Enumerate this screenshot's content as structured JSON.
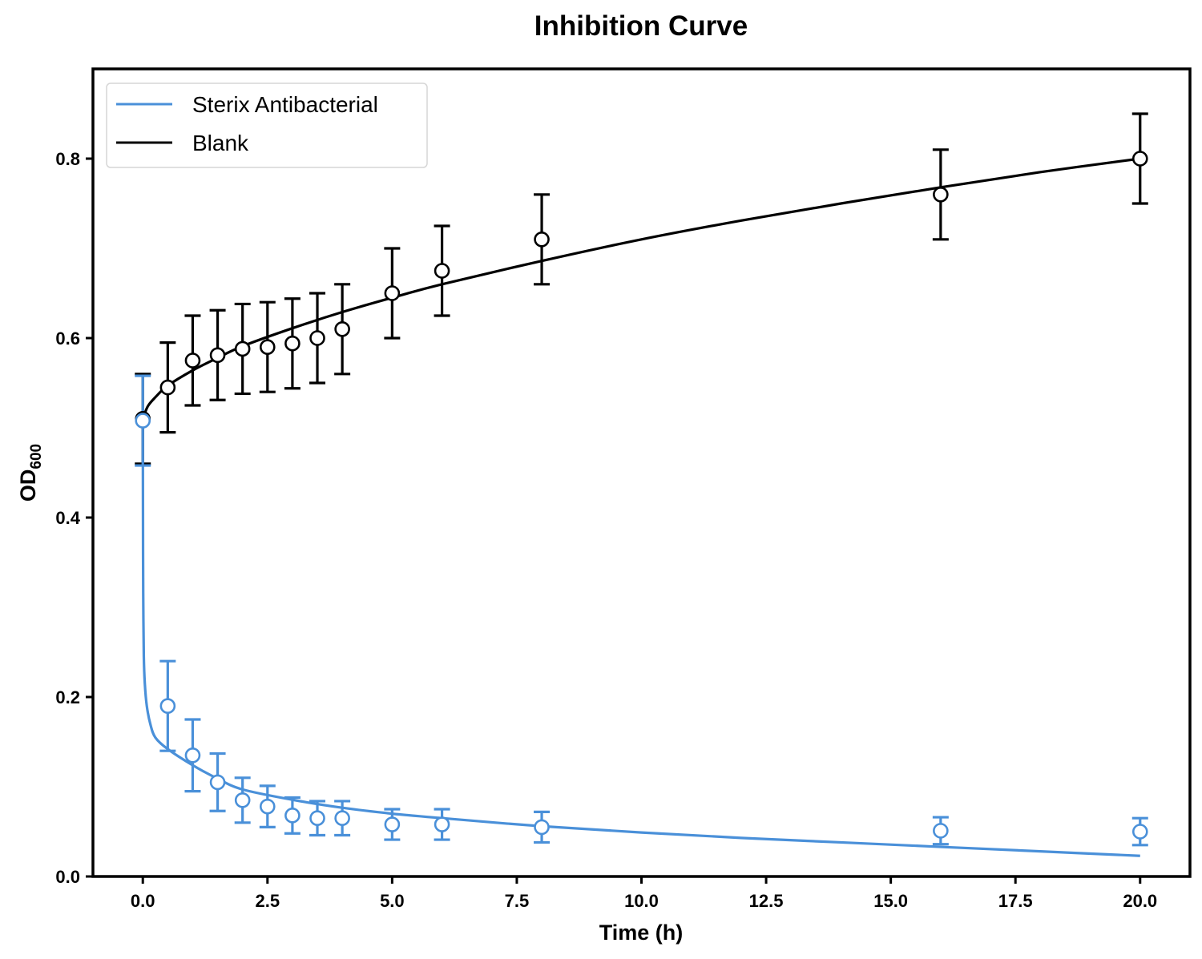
{
  "chart_data": {
    "type": "line",
    "title": "Inhibition Curve",
    "xlabel": "Time (h)",
    "ylabel_main": "OD",
    "ylabel_sub": "600",
    "xlim": [
      -1.0,
      21.0
    ],
    "ylim": [
      0.0,
      0.9
    ],
    "xticks": [
      0.0,
      2.5,
      5.0,
      7.5,
      10.0,
      12.5,
      15.0,
      17.5,
      20.0
    ],
    "xtick_labels": [
      "0.0",
      "2.5",
      "5.0",
      "7.5",
      "10.0",
      "12.5",
      "15.0",
      "17.5",
      "20.0"
    ],
    "yticks": [
      0.0,
      0.2,
      0.4,
      0.6,
      0.8
    ],
    "ytick_labels": [
      "0.0",
      "0.2",
      "0.4",
      "0.6",
      "0.8"
    ],
    "grid": false,
    "legend_position": "top-left",
    "series": [
      {
        "name": "Sterix Antibacterial",
        "color": "#4a90d9",
        "x": [
          0,
          0.5,
          1,
          1.5,
          2,
          2.5,
          3,
          3.5,
          4,
          5,
          6,
          8,
          16,
          20
        ],
        "y": [
          0.508,
          0.19,
          0.135,
          0.105,
          0.085,
          0.078,
          0.068,
          0.065,
          0.065,
          0.058,
          0.058,
          0.055,
          0.051,
          0.05
        ],
        "yerr": [
          0.05,
          0.05,
          0.04,
          0.032,
          0.025,
          0.023,
          0.02,
          0.019,
          0.019,
          0.017,
          0.017,
          0.017,
          0.015,
          0.015
        ],
        "fit": {
          "x": [
            0,
            0.005,
            0.01,
            0.02,
            0.04,
            0.08,
            0.15,
            0.25,
            0.5,
            1,
            1.5,
            2,
            3,
            4,
            5,
            6,
            8,
            10,
            12,
            14,
            16,
            18,
            20
          ],
          "y": [
            0.51,
            0.36,
            0.3,
            0.245,
            0.215,
            0.19,
            0.17,
            0.155,
            0.142,
            0.124,
            0.109,
            0.097,
            0.0855,
            0.0766,
            0.07,
            0.065,
            0.056,
            0.049,
            0.043,
            0.038,
            0.033,
            0.028,
            0.023
          ]
        }
      },
      {
        "name": "Blank",
        "color": "#000000",
        "x": [
          0,
          0.5,
          1,
          1.5,
          2,
          2.5,
          3,
          3.5,
          4,
          5,
          6,
          8,
          16,
          20
        ],
        "y": [
          0.51,
          0.545,
          0.575,
          0.581,
          0.588,
          0.59,
          0.594,
          0.6,
          0.61,
          0.65,
          0.675,
          0.71,
          0.76,
          0.8
        ],
        "yerr": [
          0.05,
          0.05,
          0.05,
          0.05,
          0.05,
          0.05,
          0.05,
          0.05,
          0.05,
          0.05,
          0.05,
          0.05,
          0.05,
          0.05
        ],
        "fit": {
          "x": [
            0,
            0.1,
            0.25,
            0.5,
            1,
            1.5,
            2,
            3,
            4,
            5,
            6,
            8,
            10,
            12,
            14,
            16,
            18,
            20
          ],
          "y": [
            0.51,
            0.524,
            0.534,
            0.547,
            0.564,
            0.578,
            0.591,
            0.611,
            0.629,
            0.645,
            0.66,
            0.686,
            0.71,
            0.731,
            0.75,
            0.768,
            0.785,
            0.8
          ]
        }
      }
    ]
  }
}
